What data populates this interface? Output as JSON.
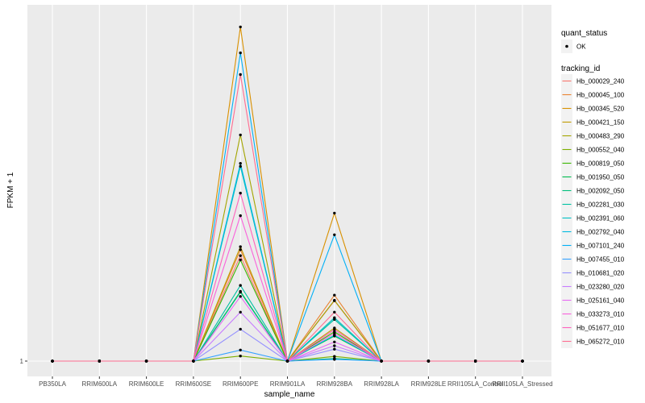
{
  "chart_data": {
    "type": "line",
    "title": "",
    "xlabel": "sample_name",
    "ylabel": "FPKM + 1",
    "categories": [
      "PB350LA",
      "RRIM600LA",
      "RRIM600LE",
      "RRIM600SE",
      "RRIM600PE",
      "RRIM901LA",
      "RRIM928BA",
      "RRIM928LA",
      "RRIM928LE",
      "RRII105LA_Control",
      "RRII105LA_Stressed"
    ],
    "y_tick_labels": [
      "1"
    ],
    "ylim": [
      1,
      1.8
    ],
    "legend": {
      "shape_title": "quant_status",
      "shape_entries": [
        "OK"
      ],
      "color_title": "tracking_id"
    },
    "series": [
      {
        "name": "Hb_000029_240",
        "color": "#F8766D",
        "values": [
          1,
          1,
          1,
          1,
          1.248,
          1,
          1.142,
          1,
          1,
          1,
          1
        ]
      },
      {
        "name": "Hb_000045_100",
        "color": "#EA8331",
        "values": [
          1,
          1,
          1,
          1,
          1.262,
          1,
          1.155,
          1,
          1,
          1,
          1
        ]
      },
      {
        "name": "Hb_000345_520",
        "color": "#D89000",
        "values": [
          1,
          1,
          1,
          1,
          1.786,
          1,
          1.348,
          1,
          1,
          1,
          1
        ]
      },
      {
        "name": "Hb_000421_150",
        "color": "#C09B00",
        "values": [
          1,
          1,
          1,
          1,
          1.269,
          1,
          1.078,
          1,
          1,
          1,
          1
        ]
      },
      {
        "name": "Hb_000483_290",
        "color": "#A3A500",
        "values": [
          1,
          1,
          1,
          1,
          1.532,
          1,
          1.143,
          1,
          1,
          1,
          1
        ]
      },
      {
        "name": "Hb_000552_040",
        "color": "#7CAE00",
        "values": [
          1,
          1,
          1,
          1,
          1.012,
          1,
          1.011,
          1,
          1,
          1,
          1
        ]
      },
      {
        "name": "Hb_000819_050",
        "color": "#39B600",
        "values": [
          1,
          1,
          1,
          1,
          1.238,
          1,
          1.069,
          1,
          1,
          1,
          1
        ]
      },
      {
        "name": "Hb_001950_050",
        "color": "#00BB4E",
        "values": [
          1,
          1,
          1,
          1,
          1.164,
          1,
          1.059,
          1,
          1,
          1,
          1
        ]
      },
      {
        "name": "Hb_002092_050",
        "color": "#00BF7D",
        "values": [
          1,
          1,
          1,
          1,
          1.162,
          1,
          1.006,
          1,
          1,
          1,
          1
        ]
      },
      {
        "name": "Hb_002281_030",
        "color": "#00C1A3",
        "values": [
          1,
          1,
          1,
          1,
          1.178,
          1,
          1.098,
          1,
          1,
          1,
          1
        ]
      },
      {
        "name": "Hb_002391_060",
        "color": "#00BFC4",
        "values": [
          1,
          1,
          1,
          1,
          1.458,
          1,
          1.102,
          1,
          1,
          1,
          1
        ]
      },
      {
        "name": "Hb_002792_040",
        "color": "#00BAE0",
        "values": [
          1,
          1,
          1,
          1,
          1.465,
          1,
          1.061,
          1,
          1,
          1,
          1
        ]
      },
      {
        "name": "Hb_007101_240",
        "color": "#00B0F6",
        "values": [
          1,
          1,
          1,
          1,
          1.725,
          1,
          1.297,
          1,
          1,
          1,
          1
        ]
      },
      {
        "name": "Hb_007455_010",
        "color": "#35A2FF",
        "values": [
          1,
          1,
          1,
          1,
          1.026,
          1,
          1.004,
          1,
          1,
          1,
          1
        ]
      },
      {
        "name": "Hb_010681_020",
        "color": "#9590FF",
        "values": [
          1,
          1,
          1,
          1,
          1.075,
          1,
          1.028,
          1,
          1,
          1,
          1
        ]
      },
      {
        "name": "Hb_023280_020",
        "color": "#C77CFF",
        "values": [
          1,
          1,
          1,
          1,
          1.115,
          1,
          1.036,
          1,
          1,
          1,
          1
        ]
      },
      {
        "name": "Hb_025161_040",
        "color": "#E76BF3",
        "values": [
          1,
          1,
          1,
          1,
          1.152,
          1,
          1.045,
          1,
          1,
          1,
          1
        ]
      },
      {
        "name": "Hb_033273_010",
        "color": "#FA62DB",
        "values": [
          1,
          1,
          1,
          1,
          1.342,
          1,
          1.065,
          1,
          1,
          1,
          1
        ]
      },
      {
        "name": "Hb_051677_010",
        "color": "#FF62BC",
        "values": [
          1,
          1,
          1,
          1,
          1.395,
          1,
          1.074,
          1,
          1,
          1,
          1
        ]
      },
      {
        "name": "Hb_065272_010",
        "color": "#FF6C91",
        "values": [
          1,
          1,
          1,
          1,
          1.674,
          1,
          1.115,
          1,
          1,
          1,
          1
        ]
      }
    ]
  }
}
